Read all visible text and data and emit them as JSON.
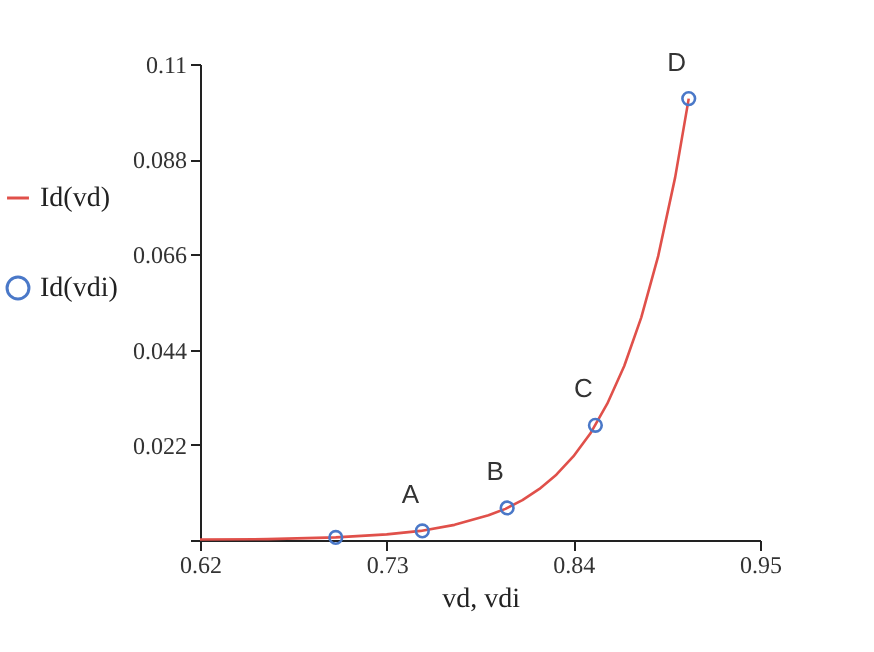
{
  "chart_data": {
    "type": "line",
    "xlabel": "vd, vdi",
    "series": [
      {
        "name": "Id(vd)",
        "color": "#e0504a",
        "marker": "none",
        "line_style": "solid",
        "x": [
          0.62,
          0.66,
          0.7,
          0.73,
          0.75,
          0.77,
          0.79,
          0.8,
          0.81,
          0.82,
          0.83,
          0.84,
          0.85,
          0.86,
          0.87,
          0.88,
          0.89,
          0.9,
          0.908
        ],
        "values": [
          0.0001,
          0.0002,
          0.0006,
          0.0013,
          0.0021,
          0.0035,
          0.0057,
          0.0072,
          0.0092,
          0.0118,
          0.0151,
          0.0193,
          0.0246,
          0.0315,
          0.0402,
          0.0514,
          0.0656,
          0.0838,
          0.102
        ]
      },
      {
        "name": "Id(vdi)",
        "type": "scatter",
        "color": "#4a78c8",
        "marker": "circle",
        "x": [
          0.7,
          0.751,
          0.801,
          0.853,
          0.908
        ],
        "values": [
          0.0006,
          0.0021,
          0.0074,
          0.0265,
          0.102
        ]
      }
    ],
    "xlim": [
      0.62,
      0.95
    ],
    "xticks": [
      0.62,
      0.73,
      0.84,
      0.95
    ],
    "ylim": [
      0,
      0.11
    ],
    "yticks": [
      {
        "value": 0,
        "label": null
      },
      0.022,
      0.044,
      0.066,
      0.088,
      0.11
    ],
    "grid": false,
    "legend": "left",
    "annotations": [
      {
        "text": "A",
        "x": 0.751,
        "y": 0.0021
      },
      {
        "text": "B",
        "x": 0.801,
        "y": 0.0074
      },
      {
        "text": "C",
        "x": 0.853,
        "y": 0.0265
      },
      {
        "text": "D",
        "x": 0.908,
        "y": 0.102
      }
    ]
  }
}
